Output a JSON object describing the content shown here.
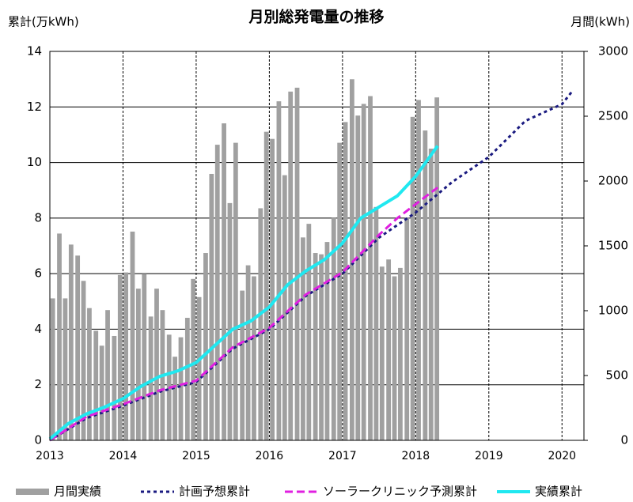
{
  "chart_data": {
    "type": "combo",
    "title": "月別総発電量の推移",
    "y_label": "累計(万kWh)",
    "y2_label": "月間(kWh)",
    "xlim": [
      2013,
      2020.3
    ],
    "xticks": [
      2013,
      2014,
      2015,
      2016,
      2017,
      2018,
      2019,
      2020
    ],
    "ylim": [
      0,
      14
    ],
    "yticks": [
      0,
      2,
      4,
      6,
      8,
      10,
      12,
      14
    ],
    "y2lim": [
      0,
      3000
    ],
    "y2ticks": [
      0,
      500,
      1000,
      1500,
      2000,
      2500,
      3000
    ],
    "grid": true,
    "legend": "bottom",
    "series": [
      {
        "name": "月間実績",
        "type": "bar",
        "axis": "y2",
        "color": "#a0a0a0",
        "x": [
          2013.04,
          2013.13,
          2013.21,
          2013.29,
          2013.38,
          2013.46,
          2013.54,
          2013.63,
          2013.71,
          2013.79,
          2013.88,
          2013.96,
          2014.04,
          2014.13,
          2014.21,
          2014.29,
          2014.38,
          2014.46,
          2014.54,
          2014.63,
          2014.71,
          2014.79,
          2014.88,
          2014.96,
          2015.04,
          2015.13,
          2015.21,
          2015.29,
          2015.38,
          2015.46,
          2015.54,
          2015.63,
          2015.71,
          2015.79,
          2015.88,
          2015.96,
          2016.04,
          2016.13,
          2016.21,
          2016.29,
          2016.38,
          2016.46,
          2016.54,
          2016.63,
          2016.71,
          2016.79,
          2016.88,
          2016.96,
          2017.04,
          2017.13,
          2017.21,
          2017.29,
          2017.38,
          2017.46,
          2017.54,
          2017.63,
          2017.71,
          2017.79,
          2017.88,
          2017.96,
          2018.04,
          2018.13,
          2018.21,
          2018.29
        ],
        "values": [
          1095,
          1595,
          1095,
          1510,
          1425,
          1230,
          1020,
          845,
          730,
          1005,
          805,
          1275,
          1295,
          1610,
          1170,
          1285,
          955,
          1170,
          1005,
          815,
          645,
          795,
          945,
          1245,
          1105,
          1445,
          2055,
          2280,
          2445,
          1830,
          2295,
          1155,
          1350,
          1265,
          1790,
          2380,
          2325,
          2615,
          2045,
          2690,
          2720,
          1565,
          1670,
          1445,
          1435,
          1530,
          1715,
          2295,
          2455,
          2785,
          2505,
          2595,
          2655,
          1800,
          1340,
          1395,
          1265,
          1330,
          1715,
          2495,
          2625,
          2390,
          2250,
          2645
        ]
      },
      {
        "name": "計画予想累計",
        "type": "line",
        "dash": "4,4",
        "width": 3,
        "color": "#1a1a80",
        "x": [
          2013,
          2013.5,
          2014,
          2014.5,
          2015,
          2015.5,
          2016,
          2016.5,
          2017,
          2017.5,
          2018,
          2018.5,
          2019,
          2019.5,
          2020,
          2020.15
        ],
        "values": [
          0,
          0.8,
          1.25,
          1.75,
          2.1,
          3.3,
          4.0,
          5.2,
          6.0,
          7.3,
          8.2,
          9.3,
          10.2,
          11.5,
          12.1,
          12.6
        ]
      },
      {
        "name": "ソーラークリニック予測累計",
        "type": "line",
        "dash": "10,5",
        "width": 3,
        "color": "#e020e0",
        "x": [
          2013,
          2013.5,
          2014,
          2014.5,
          2015,
          2015.5,
          2016,
          2016.5,
          2017,
          2017.5,
          2017.75,
          2018,
          2018.3
        ],
        "values": [
          0,
          0.85,
          1.3,
          1.8,
          2.15,
          3.35,
          4.05,
          5.25,
          6.05,
          7.4,
          8.0,
          8.5,
          9.1
        ]
      },
      {
        "name": "実績累計",
        "type": "line",
        "width": 4,
        "color": "#20e8f0",
        "x": [
          2013,
          2013.25,
          2013.5,
          2013.75,
          2014,
          2014.25,
          2014.5,
          2014.75,
          2015,
          2015.25,
          2015.5,
          2015.75,
          2016,
          2016.25,
          2016.5,
          2016.75,
          2017,
          2017.25,
          2017.5,
          2017.75,
          2018,
          2018.3
        ],
        "values": [
          0.05,
          0.6,
          0.95,
          1.2,
          1.5,
          1.95,
          2.3,
          2.5,
          2.8,
          3.4,
          4.0,
          4.3,
          4.8,
          5.6,
          6.1,
          6.5,
          7.1,
          8.0,
          8.4,
          8.8,
          9.5,
          10.6
        ]
      }
    ]
  }
}
